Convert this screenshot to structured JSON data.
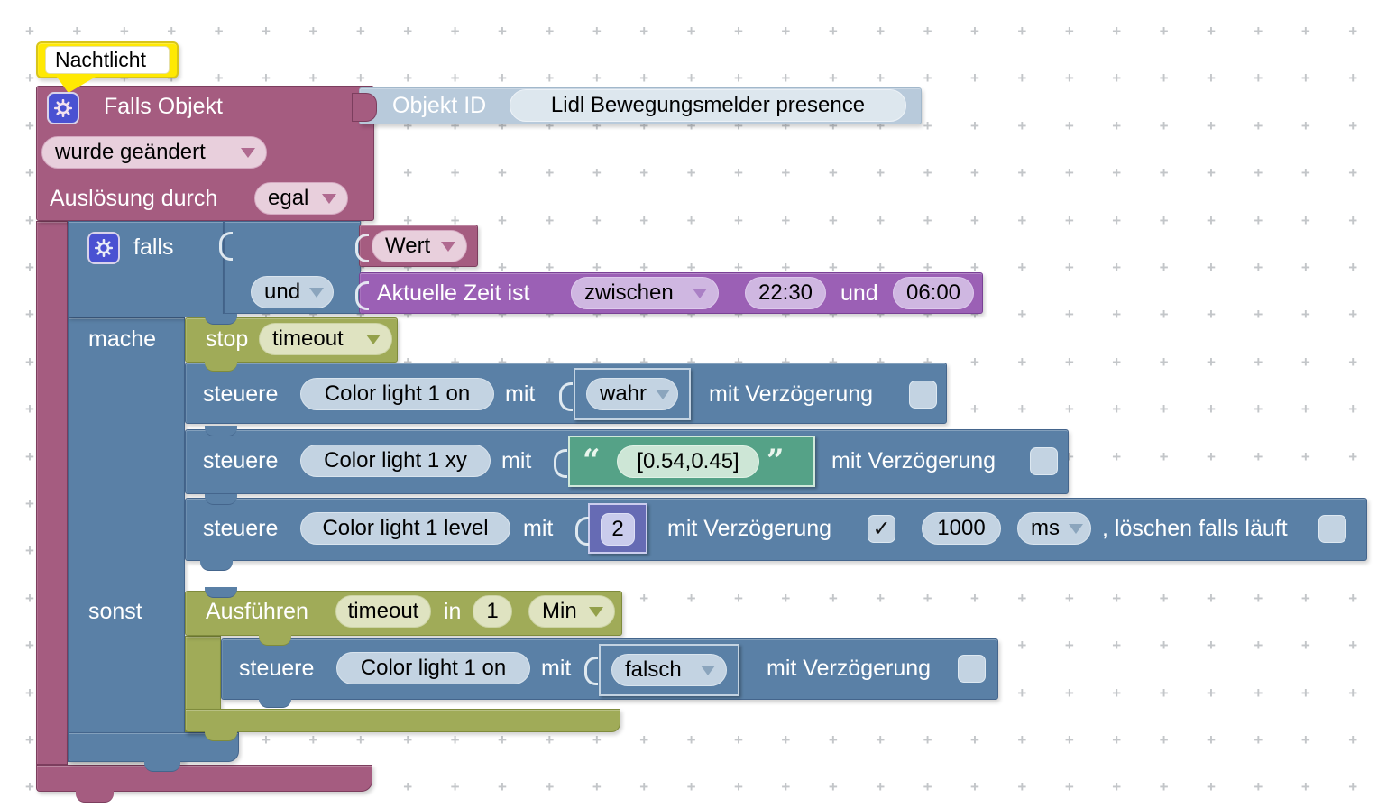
{
  "workspace": {
    "background": "#ffffff",
    "grid_color": "#c3c6c9"
  },
  "comment": {
    "text": "Nachtlicht"
  },
  "trigger": {
    "title": "Falls Objekt",
    "object": {
      "label": "Objekt ID",
      "value": "Lidl Bewegungsmelder presence"
    },
    "change_mode": "wurde geändert",
    "trigger_by_label": "Auslösung durch",
    "trigger_by": "egal"
  },
  "if_block": {
    "if_label": "falls",
    "logic_op": "und",
    "value_option": "Wert",
    "time": {
      "label": "Aktuelle Zeit ist",
      "mode": "zwischen",
      "from": "22:30",
      "and_label": "und",
      "to": "06:00"
    },
    "do_label": "mache",
    "else_label": "sonst"
  },
  "do_branch": {
    "stop": {
      "label": "stop",
      "name": "timeout"
    },
    "set_on": {
      "verb": "steuere",
      "object": "Color light 1 on",
      "mit": "mit",
      "value": "wahr",
      "delay_label": "mit Verzögerung"
    },
    "set_xy": {
      "verb": "steuere",
      "object": "Color light 1 xy",
      "mit": "mit",
      "quote_open": "“",
      "value": "[0.54,0.45]",
      "quote_close": "”",
      "delay_label": "mit Verzögerung"
    },
    "set_level": {
      "verb": "steuere",
      "object": "Color light 1 level",
      "mit": "mit",
      "value": "2",
      "delay_label": "mit Verzögerung",
      "delay_checked": "✓",
      "delay_value": "1000",
      "delay_unit": "ms",
      "clear_label": ", löschen falls läuft"
    }
  },
  "else_branch": {
    "exec": {
      "label": "Ausführen",
      "name": "timeout",
      "in_label": "in",
      "value": "1",
      "unit": "Min"
    },
    "set_off": {
      "verb": "steuere",
      "object": "Color light 1 on",
      "mit": "mit",
      "value": "falsch",
      "delay_label": "mit Verzögerung"
    }
  }
}
